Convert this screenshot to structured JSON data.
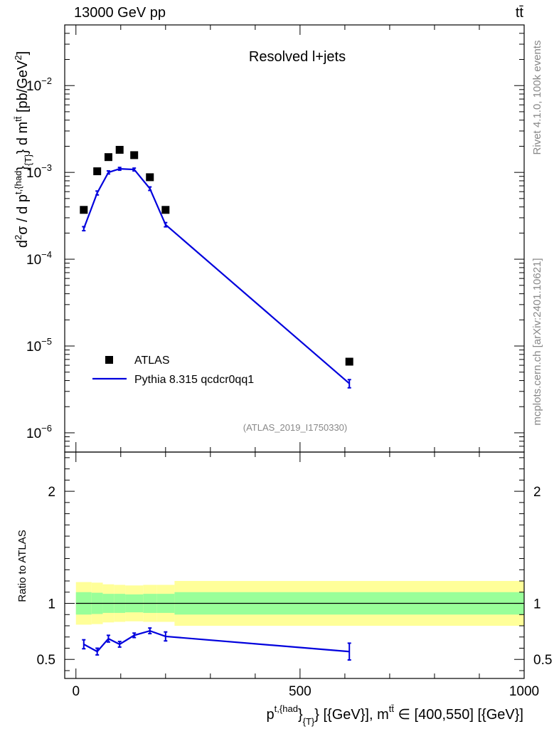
{
  "header": {
    "left": "13000 GeV pp",
    "right": "tt̄"
  },
  "side_labels": {
    "rivet": "Rivet 4.1.0,  100k events",
    "mcplots": "mcplots.cern.ch [arXiv:2401.10621]"
  },
  "colors": {
    "data": "#000000",
    "mc": "#0000dd",
    "band_inner": "#99ff99",
    "band_outer": "#ffff99",
    "watermark": "#888888"
  },
  "chart_data": [
    {
      "type": "line",
      "title": "Resolved l+jets",
      "watermark": "(ATLAS_2019_I1750330)",
      "yscale": "log",
      "ylim": [
        6e-07,
        0.05
      ],
      "ylabel": "d²σ / d p^{t,{had}}_{T} d m^{tt̄} [pb/GeV²]",
      "y_ticks": [
        {
          "value": 1e-06,
          "base": "10",
          "exp": "−6"
        },
        {
          "value": 1e-05,
          "base": "10",
          "exp": "−5"
        },
        {
          "value": 0.0001,
          "base": "10",
          "exp": "−4"
        },
        {
          "value": 0.001,
          "base": "10",
          "exp": "−3"
        },
        {
          "value": 0.01,
          "base": "10",
          "exp": "−2"
        }
      ],
      "legend": {
        "position": "bottom-left",
        "entries": [
          {
            "label": "ATLAS",
            "style": "marker"
          },
          {
            "label": "Pythia 8.315 qcdcr0qq1",
            "style": "line"
          }
        ]
      },
      "series": [
        {
          "name": "ATLAS",
          "style": "marker",
          "x": [
            17.5,
            47.5,
            72.5,
            97.5,
            130,
            165,
            200,
            610
          ],
          "y": [
            0.00037,
            0.00103,
            0.0015,
            0.00182,
            0.00158,
            0.00088,
            0.00037,
            6.6e-06
          ]
        },
        {
          "name": "Pythia 8.315 qcdcr0qq1",
          "style": "line",
          "x": [
            17.5,
            47.5,
            72.5,
            97.5,
            130,
            165,
            200,
            610
          ],
          "y": [
            0.000225,
            0.00058,
            0.001,
            0.0011,
            0.00108,
            0.00065,
            0.00025,
            3.7e-06
          ],
          "err": [
            1.2e-05,
            3e-05,
            4e-05,
            4e-05,
            4e-05,
            3e-05,
            1.4e-05,
            4e-07
          ]
        }
      ]
    },
    {
      "type": "line",
      "ylabel": "Ratio to ATLAS",
      "xlabel": "p^{t,{had}}_{T} [{GeV}], m^{tt̄} ∈ [400,550] [{GeV}]",
      "xlim": [
        -25,
        1000
      ],
      "ylim": [
        0.33,
        2.35
      ],
      "x_ticks": [
        0,
        500,
        1000
      ],
      "y_ticks": [
        0.5,
        1,
        2
      ],
      "reference_line": 1,
      "bands": [
        {
          "x": [
            0,
            35,
            60,
            85,
            110,
            150,
            180,
            220,
            1000
          ],
          "inner_lo": [
            0.9,
            0.905,
            0.915,
            0.915,
            0.92,
            0.915,
            0.915,
            0.9
          ],
          "inner_hi": [
            1.1,
            1.095,
            1.085,
            1.085,
            1.08,
            1.085,
            1.085,
            1.1
          ],
          "outer_lo": [
            0.81,
            0.815,
            0.83,
            0.835,
            0.84,
            0.835,
            0.835,
            0.8
          ],
          "outer_hi": [
            1.19,
            1.185,
            1.17,
            1.165,
            1.16,
            1.165,
            1.165,
            1.2
          ]
        }
      ],
      "series": [
        {
          "name": "Pythia 8.315 qcdcr0qq1",
          "x": [
            17.5,
            47.5,
            72.5,
            97.5,
            130,
            165,
            200,
            610
          ],
          "y": [
            0.635,
            0.57,
            0.685,
            0.635,
            0.715,
            0.755,
            0.705,
            0.57
          ],
          "err": [
            0.04,
            0.03,
            0.03,
            0.025,
            0.02,
            0.025,
            0.04,
            0.075
          ]
        }
      ]
    }
  ]
}
